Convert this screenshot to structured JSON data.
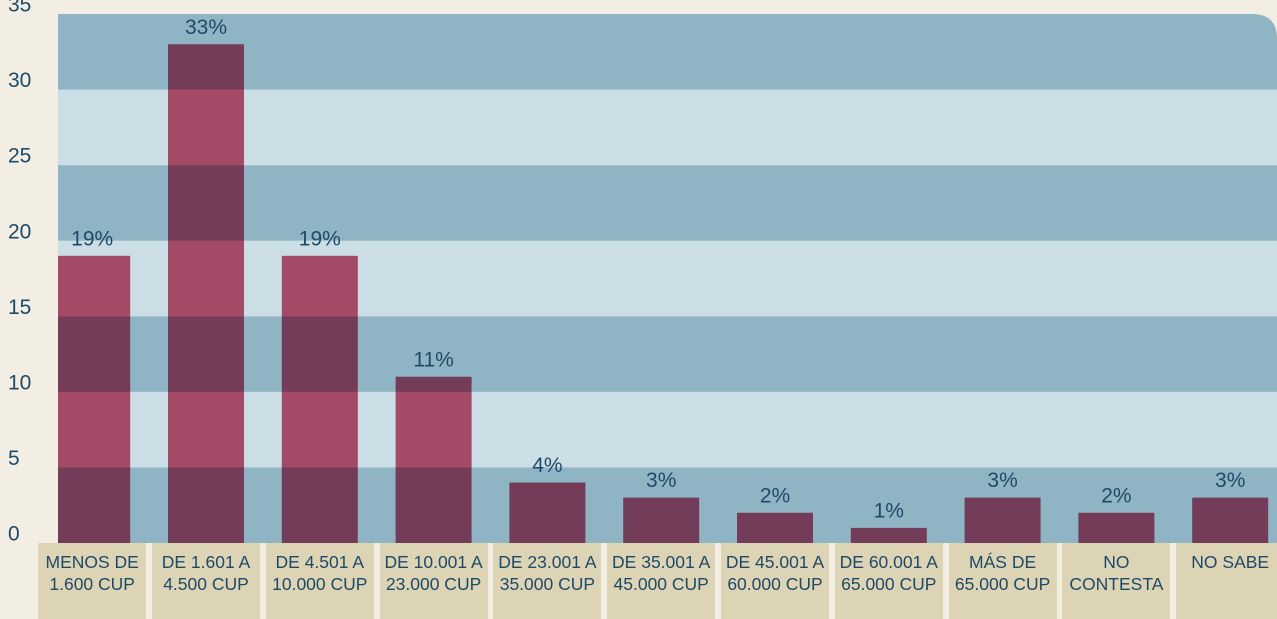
{
  "chart_data": {
    "type": "bar",
    "categories": [
      "MENOS DE 1.600 CUP",
      "DE 1.601 A 4.500 CUP",
      "DE 4.501 A 10.000 CUP",
      "DE 10.001 A 23.000 CUP",
      "DE 23.001 A 35.000 CUP",
      "DE 35.001 A 45.000 CUP",
      "DE 45.001 A 60.000 CUP",
      "DE 60.001 A 65.000 CUP",
      "MÁS DE 65.000 CUP",
      "NO CONTESTA",
      "NO SABE"
    ],
    "values": [
      19,
      33,
      19,
      11,
      4,
      3,
      2,
      1,
      3,
      2,
      3
    ],
    "value_labels": [
      "19%",
      "33%",
      "19%",
      "11%",
      "4%",
      "3%",
      "2%",
      "1%",
      "3%",
      "2%",
      "3%"
    ],
    "color": "#cd5572",
    "ylim": [
      0,
      35
    ],
    "yticks": [
      0,
      5,
      10,
      15,
      20,
      25,
      30,
      35
    ],
    "grid": true
  }
}
